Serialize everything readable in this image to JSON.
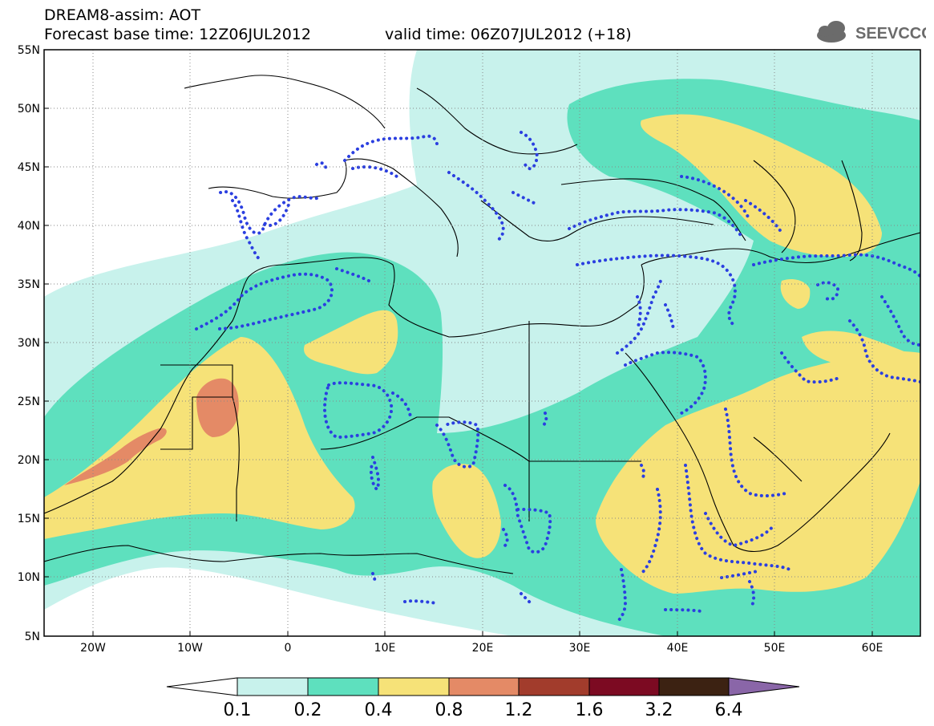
{
  "header": {
    "title": "DREAM8-assim: AOT",
    "base_time": "Forecast base time: 12Z06JUL2012",
    "valid_time": "valid time: 06Z07JUL2012 (+18)",
    "logo_text": "SEEVCCC"
  },
  "map": {
    "lat_labels": [
      "55N",
      "50N",
      "45N",
      "40N",
      "35N",
      "30N",
      "25N",
      "20N",
      "15N",
      "10N",
      "5N"
    ],
    "lon_labels": [
      "20W",
      "10W",
      "0",
      "10E",
      "20E",
      "30E",
      "40E",
      "50E",
      "60E"
    ],
    "grid_style": "dotted",
    "colors": {
      "c01": "#c8f2ec",
      "c02": "#5ee0be",
      "c04": "#f6e278",
      "c08": "#e48a66",
      "coast": "#000000",
      "precip_dots": "#2b3fe0"
    }
  },
  "colorbar": {
    "levels": [
      "0.1",
      "0.2",
      "0.4",
      "0.8",
      "1.2",
      "1.6",
      "3.2",
      "6.4"
    ],
    "colors": [
      "#ffffff",
      "#c8f2ec",
      "#5ee0be",
      "#f6e278",
      "#e48a66",
      "#a23c2c",
      "#7c0a22",
      "#3c2212",
      "#8a66a8"
    ]
  }
}
